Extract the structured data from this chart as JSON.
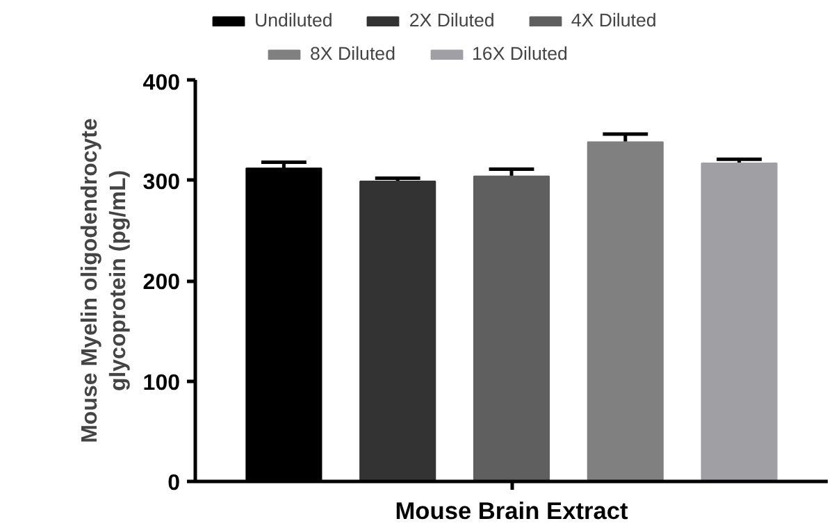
{
  "chart_data": {
    "type": "bar",
    "categories": [
      "Mouse Brain Extract"
    ],
    "ylabel": "Mouse Myelin oligodendrocyte glycoprotein (pg/mL)",
    "ylim": [
      0,
      400
    ],
    "yticks": [
      0,
      100,
      200,
      300,
      400
    ],
    "grid": false,
    "legend": "top",
    "series": [
      {
        "name": "Undiluted",
        "color": "#000000",
        "values": [
          312
        ],
        "errors": [
          6
        ]
      },
      {
        "name": "2X Diluted",
        "color": "#333333",
        "values": [
          299
        ],
        "errors": [
          3
        ]
      },
      {
        "name": "4X Diluted",
        "color": "#5f5f5f",
        "values": [
          304
        ],
        "errors": [
          7
        ]
      },
      {
        "name": "8X Diluted",
        "color": "#808080",
        "values": [
          338
        ],
        "errors": [
          8
        ]
      },
      {
        "name": "16X Diluted",
        "color": "#a0a0a4",
        "values": [
          317
        ],
        "errors": [
          4
        ]
      }
    ]
  }
}
